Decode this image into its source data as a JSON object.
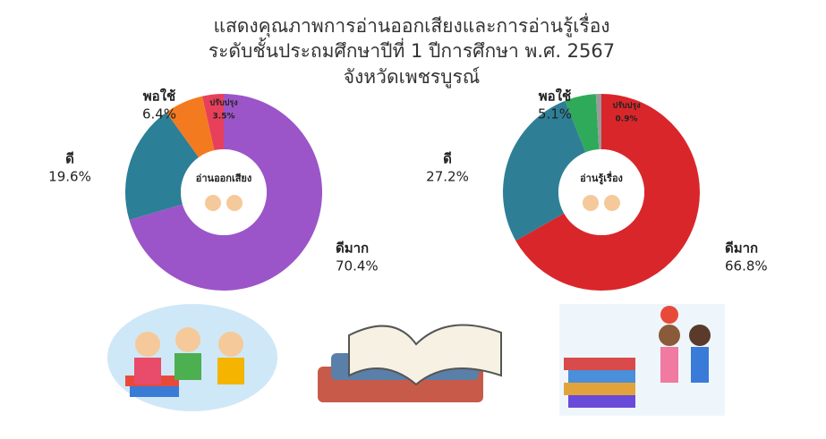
{
  "title": [
    "แสดงคุณภาพการอ่านออกเสียงและการอ่านรู้เรื่อง",
    "ระดับชั้นประถมศึกษาปีที่ 1 ปีการศึกษา พ.ศ. 2567",
    "จังหวัดเพชรบูรณ์"
  ],
  "chart_data": [
    {
      "type": "pie",
      "title": "อ่านออกเสียง",
      "categories": [
        "ดีมาก",
        "ดี",
        "พอใช้",
        "ปรับปรุง"
      ],
      "values": [
        70.4,
        19.6,
        6.4,
        3.5
      ],
      "value_labels": [
        "70.4%",
        "19.6%",
        "6.4%",
        "3.5%"
      ],
      "colors": [
        "#9b55c8",
        "#2b7f96",
        "#f47a1f",
        "#e8405a"
      ]
    },
    {
      "type": "pie",
      "title": "อ่านรู้เรื่อง",
      "categories": [
        "ดีมาก",
        "ดี",
        "พอใช้",
        "ปรับปรุง"
      ],
      "values": [
        66.8,
        27.2,
        5.1,
        0.9
      ],
      "value_labels": [
        "66.8%",
        "27.2%",
        "5.1%",
        "0.9%"
      ],
      "colors": [
        "#d9262b",
        "#2e7f96",
        "#2eaa5a",
        "#9a9a9a"
      ]
    }
  ]
}
